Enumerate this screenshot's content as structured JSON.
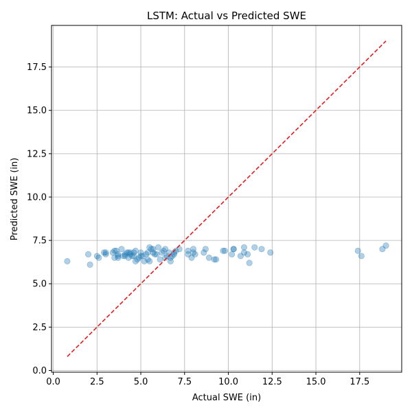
{
  "chart_data": {
    "type": "scatter",
    "title": "LSTM: Actual vs Predicted SWE",
    "xlabel": "Actual SWE (in)",
    "ylabel": "Predicted SWE (in)",
    "xlim": [
      -0.1,
      19.9
    ],
    "ylim": [
      -0.1,
      19.9
    ],
    "xticks": [
      "0.0",
      "2.5",
      "5.0",
      "7.5",
      "10.0",
      "12.5",
      "15.0",
      "17.5"
    ],
    "yticks": [
      "0.0",
      "2.5",
      "5.0",
      "7.5",
      "10.0",
      "12.5",
      "15.0",
      "17.5"
    ],
    "grid": true,
    "point_color": "#1f77b4",
    "line_color": "#e41a1c",
    "reference_line": {
      "style": "dashed",
      "from": [
        0.8,
        0.8
      ],
      "to": [
        19.0,
        19.0
      ]
    },
    "series": [
      {
        "x": [
          0.8,
          2.0,
          2.1,
          2.5,
          2.6,
          2.9,
          3.0,
          3.0,
          3.4,
          3.5,
          3.5,
          3.6,
          3.7,
          3.7,
          3.7,
          3.9,
          4.0,
          4.1,
          4.1,
          4.2,
          4.3,
          4.3,
          4.4,
          4.4,
          4.5,
          4.6,
          4.6,
          4.7,
          4.7,
          4.8,
          4.9,
          5.0,
          5.0,
          5.1,
          5.2,
          5.3,
          5.4,
          5.4,
          5.5,
          5.5,
          5.6,
          5.7,
          5.7,
          5.8,
          5.9,
          6.0,
          6.1,
          6.2,
          6.3,
          6.4,
          6.4,
          6.5,
          6.6,
          6.7,
          6.7,
          6.8,
          6.9,
          6.9,
          7.0,
          7.2,
          7.7,
          7.7,
          7.9,
          8.0,
          8.0,
          8.1,
          8.6,
          8.7,
          8.9,
          9.2,
          9.3,
          9.7,
          9.8,
          10.2,
          10.3,
          10.3,
          10.7,
          10.9,
          10.9,
          11.1,
          11.2,
          11.5,
          11.9,
          12.4,
          17.4,
          17.6,
          18.8,
          19.0
        ],
        "y": [
          6.3,
          6.7,
          6.1,
          6.6,
          6.5,
          6.8,
          6.8,
          6.7,
          6.8,
          6.5,
          6.9,
          6.9,
          6.5,
          6.6,
          6.7,
          7.0,
          6.6,
          6.6,
          6.7,
          6.8,
          6.5,
          6.8,
          6.7,
          6.8,
          6.6,
          6.6,
          6.8,
          6.3,
          6.9,
          6.4,
          6.5,
          6.6,
          6.8,
          6.6,
          6.3,
          6.7,
          6.4,
          6.8,
          6.3,
          7.1,
          7.0,
          6.8,
          7.0,
          6.7,
          6.7,
          7.1,
          6.4,
          6.8,
          6.9,
          6.5,
          7.0,
          6.6,
          6.8,
          6.3,
          6.5,
          6.6,
          6.8,
          6.7,
          6.9,
          7.0,
          6.9,
          6.7,
          6.5,
          7.0,
          6.8,
          6.7,
          6.8,
          7.0,
          6.5,
          6.4,
          6.4,
          6.9,
          6.9,
          6.7,
          7.0,
          7.0,
          6.6,
          6.8,
          7.1,
          6.7,
          6.2,
          7.1,
          7.0,
          6.8,
          6.9,
          6.6,
          7.0,
          7.2
        ]
      }
    ]
  }
}
